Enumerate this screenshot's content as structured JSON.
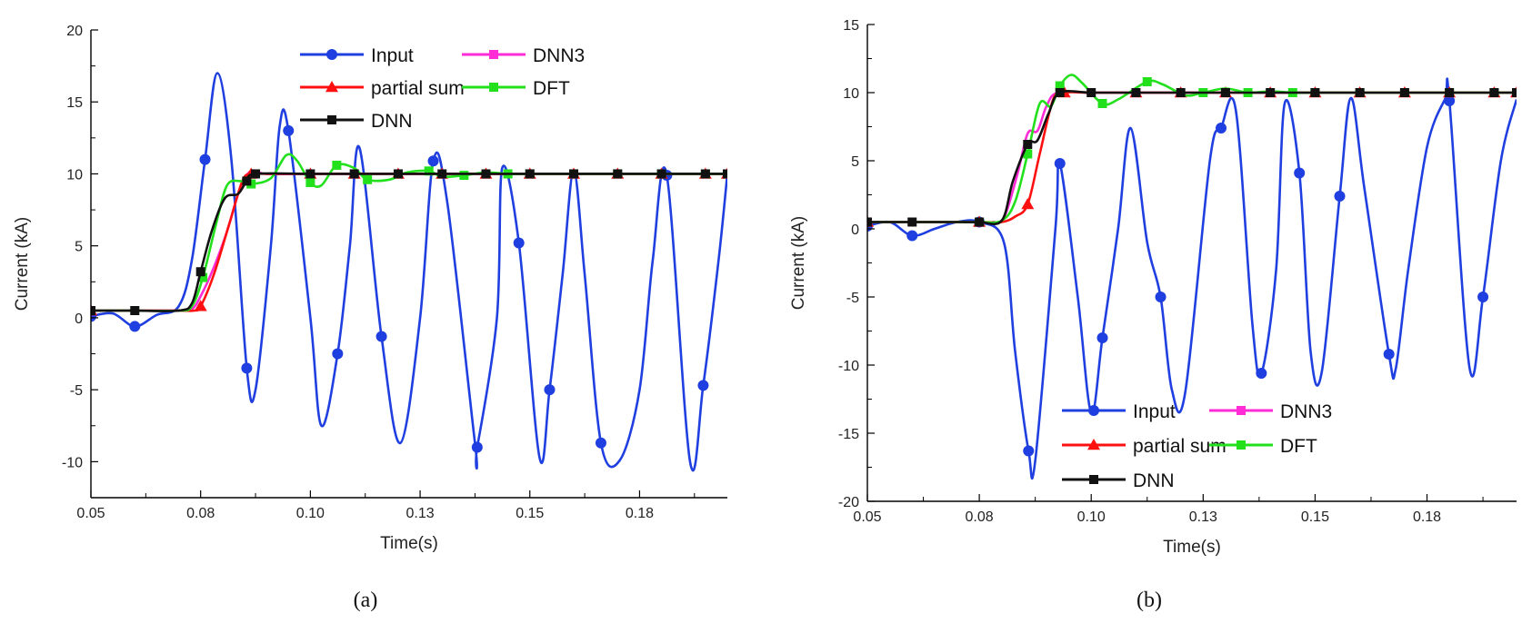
{
  "chart_data": [
    {
      "id": "a",
      "type": "line",
      "caption": "(a)",
      "xlabel": "Time(s)",
      "ylabel": "Current (kA)",
      "xlim": [
        0.05,
        0.195
      ],
      "ylim": [
        -12.5,
        20
      ],
      "xticks": [
        0.05,
        0.075,
        0.1,
        0.125,
        0.15,
        0.175
      ],
      "xtick_labels": [
        "0.05",
        "0.08",
        "0.10",
        "0.13",
        "0.15",
        "0.18"
      ],
      "yticks": [
        -10,
        -5,
        0,
        5,
        10,
        15,
        20
      ],
      "ytick_labels": [
        "-10",
        "-5",
        "0",
        "5",
        "10",
        "15",
        "20"
      ],
      "legend": [
        {
          "series": "Input",
          "label": "Input"
        },
        {
          "series": "DNN3",
          "label": "DNN3"
        },
        {
          "series": "partial sum",
          "label": "partial sum"
        },
        {
          "series": "DFT",
          "label": "DFT"
        },
        {
          "series": "DNN",
          "label": "DNN"
        }
      ],
      "legend_position": "top-right",
      "series": [
        {
          "name": "Input",
          "color": "#1f3fe0",
          "marker": "circle",
          "x": [
            0.05,
            0.055,
            0.06,
            0.065,
            0.07,
            0.073,
            0.076,
            0.0788,
            0.082,
            0.0855,
            0.0875,
            0.091,
            0.093,
            0.095,
            0.1,
            0.1025,
            0.1062,
            0.109,
            0.1112,
            0.1162,
            0.1205,
            0.125,
            0.128,
            0.1312,
            0.1375,
            0.138,
            0.1425,
            0.1437,
            0.1475,
            0.1522,
            0.1545,
            0.1575,
            0.16,
            0.1625,
            0.1662,
            0.1705,
            0.175,
            0.178,
            0.1812,
            0.1865,
            0.1895,
            0.193,
            0.195
          ],
          "y": [
            0.1,
            0.3,
            -0.6,
            0.2,
            0.8,
            4.0,
            11.0,
            17.0,
            11.0,
            -3.5,
            -5.0,
            5.0,
            13.3,
            13.0,
            0.0,
            -7.5,
            -2.5,
            5.0,
            11.8,
            -1.3,
            -8.7,
            0.0,
            10.9,
            8.0,
            -8.7,
            -9.0,
            0.0,
            10.4,
            5.2,
            -9.7,
            -5.0,
            3.1,
            10.2,
            3.0,
            -8.7,
            -9.9,
            -5.0,
            4.0,
            9.9,
            -10.0,
            -4.7,
            4.0,
            10.0
          ],
          "marker_indices": [
            0,
            2,
            6,
            9,
            13,
            16,
            19,
            22,
            25,
            28,
            30,
            34,
            38,
            40
          ]
        },
        {
          "name": "DNN3",
          "color": "#ff2bd6",
          "marker": "square",
          "x": [
            0.05,
            0.06,
            0.07,
            0.073,
            0.075,
            0.078,
            0.081,
            0.084,
            0.0865,
            0.09,
            0.1,
            0.11,
            0.12,
            0.13,
            0.14,
            0.15,
            0.16,
            0.17,
            0.18,
            0.19,
            0.195
          ],
          "y": [
            0.5,
            0.5,
            0.5,
            0.6,
            1.5,
            3.5,
            6.0,
            9.0,
            10.2,
            10.0,
            10.0,
            10.0,
            10.0,
            10.0,
            10.0,
            10.0,
            10.0,
            10.0,
            10.0,
            10.0,
            10.0
          ],
          "marker_indices": []
        },
        {
          "name": "partial sum",
          "color": "#ff1010",
          "marker": "triangle",
          "x": [
            0.05,
            0.06,
            0.07,
            0.0735,
            0.075,
            0.078,
            0.0815,
            0.0845,
            0.0865,
            0.09,
            0.1,
            0.11,
            0.12,
            0.13,
            0.14,
            0.15,
            0.16,
            0.17,
            0.18,
            0.19,
            0.195
          ],
          "y": [
            0.5,
            0.5,
            0.5,
            0.5,
            0.8,
            3.0,
            6.5,
            9.5,
            10.0,
            10.0,
            10.0,
            10.0,
            10.0,
            10.0,
            10.0,
            10.0,
            10.0,
            10.0,
            10.0,
            10.0,
            10.0
          ],
          "marker_indices": [
            0,
            4,
            8,
            10,
            11,
            12,
            13,
            14,
            15,
            16,
            17,
            18,
            19,
            20
          ]
        },
        {
          "name": "DFT",
          "color": "#22e01c",
          "marker": "square",
          "x": [
            0.05,
            0.06,
            0.07,
            0.073,
            0.0755,
            0.0785,
            0.081,
            0.084,
            0.0865,
            0.091,
            0.0945,
            0.097,
            0.1,
            0.1025,
            0.106,
            0.11,
            0.113,
            0.118,
            0.122,
            0.127,
            0.13,
            0.135,
            0.14,
            0.145,
            0.15,
            0.16,
            0.17,
            0.18,
            0.19,
            0.195
          ],
          "y": [
            0.5,
            0.5,
            0.5,
            0.8,
            2.8,
            6.5,
            9.2,
            9.5,
            9.3,
            9.7,
            11.3,
            10.9,
            9.4,
            9.2,
            10.6,
            10.4,
            9.6,
            9.6,
            10.1,
            10.2,
            9.8,
            9.9,
            10.1,
            10.0,
            10.0,
            10.0,
            10.0,
            10.0,
            10.0,
            10.0
          ],
          "marker_indices": [
            0,
            4,
            8,
            12,
            14,
            16,
            19,
            21,
            23,
            24,
            25,
            26,
            27,
            28
          ]
        },
        {
          "name": "DNN",
          "color": "#111111",
          "marker": "square",
          "x": [
            0.05,
            0.06,
            0.07,
            0.073,
            0.075,
            0.0775,
            0.0805,
            0.0835,
            0.0855,
            0.0875,
            0.1,
            0.11,
            0.12,
            0.13,
            0.14,
            0.15,
            0.16,
            0.17,
            0.18,
            0.19,
            0.195
          ],
          "y": [
            0.5,
            0.5,
            0.5,
            1.0,
            3.2,
            6.0,
            8.3,
            8.6,
            9.5,
            10.0,
            10.0,
            10.0,
            10.0,
            10.0,
            10.0,
            10.0,
            10.0,
            10.0,
            10.0,
            10.0,
            10.0
          ],
          "marker_indices": [
            0,
            1,
            4,
            8,
            9,
            10,
            11,
            12,
            13,
            14,
            15,
            16,
            17,
            18,
            19,
            20
          ]
        }
      ]
    },
    {
      "id": "b",
      "type": "line",
      "caption": "(b)",
      "xlabel": "Time(s)",
      "ylabel": "Current (kA)",
      "xlim": [
        0.05,
        0.195
      ],
      "ylim": [
        -20,
        15
      ],
      "xticks": [
        0.05,
        0.075,
        0.1,
        0.125,
        0.15,
        0.175
      ],
      "xtick_labels": [
        "0.05",
        "0.08",
        "0.10",
        "0.13",
        "0.15",
        "0.18"
      ],
      "yticks": [
        -20,
        -15,
        -10,
        -5,
        0,
        5,
        10,
        15
      ],
      "ytick_labels": [
        "-20",
        "-15",
        "-10",
        "-5",
        "0",
        "5",
        "10",
        "15"
      ],
      "legend": [
        {
          "series": "Input",
          "label": "Input"
        },
        {
          "series": "DNN3",
          "label": "DNN3"
        },
        {
          "series": "partial sum",
          "label": "partial sum"
        },
        {
          "series": "DFT",
          "label": "DFT"
        },
        {
          "series": "DNN",
          "label": "DNN"
        }
      ],
      "legend_position": "bottom-right",
      "series": [
        {
          "name": "Input",
          "color": "#1f3fe0",
          "marker": "circle",
          "x": [
            0.05,
            0.055,
            0.06,
            0.065,
            0.07,
            0.075,
            0.0805,
            0.083,
            0.086,
            0.0875,
            0.092,
            0.093,
            0.097,
            0.1,
            0.1025,
            0.106,
            0.1088,
            0.1125,
            0.1155,
            0.118,
            0.121,
            0.1265,
            0.129,
            0.1323,
            0.136,
            0.138,
            0.1413,
            0.1432,
            0.1465,
            0.149,
            0.1515,
            0.1555,
            0.158,
            0.161,
            0.1665,
            0.168,
            0.1708,
            0.175,
            0.179,
            0.18,
            0.1845,
            0.1875,
            0.1915,
            0.195
          ],
          "y": [
            0.2,
            0.5,
            -0.5,
            0.0,
            0.5,
            0.5,
            -1.0,
            -9.0,
            -16.3,
            -17.0,
            0.0,
            4.8,
            -5.0,
            -13.5,
            -8.0,
            0.0,
            7.4,
            -1.0,
            -5.0,
            -11.8,
            -12.0,
            5.0,
            7.4,
            8.7,
            -7.0,
            -10.6,
            -3.0,
            9.2,
            4.1,
            -9.0,
            -10.5,
            2.4,
            9.6,
            3.0,
            -9.2,
            -10.3,
            -3.0,
            6.0,
            9.5,
            9.4,
            -10.2,
            -5.0,
            5.0,
            9.5
          ],
          "marker_indices": [
            0,
            2,
            5,
            8,
            11,
            14,
            18,
            22,
            25,
            28,
            31,
            34,
            39,
            41
          ]
        },
        {
          "name": "DNN3",
          "color": "#ff2bd6",
          "marker": "square",
          "x": [
            0.05,
            0.06,
            0.07,
            0.075,
            0.078,
            0.0805,
            0.0835,
            0.0858,
            0.088,
            0.09,
            0.0925,
            0.1,
            0.11,
            0.12,
            0.13,
            0.14,
            0.15,
            0.16,
            0.17,
            0.18,
            0.19,
            0.195
          ],
          "y": [
            0.5,
            0.5,
            0.5,
            0.5,
            0.5,
            0.8,
            4.0,
            7.0,
            7.2,
            9.0,
            10.0,
            10.0,
            10.0,
            10.0,
            10.0,
            10.0,
            10.0,
            10.0,
            10.0,
            10.0,
            10.0,
            10.0
          ],
          "marker_indices": []
        },
        {
          "name": "partial sum",
          "color": "#ff1010",
          "marker": "triangle",
          "x": [
            0.05,
            0.06,
            0.07,
            0.075,
            0.08,
            0.083,
            0.0858,
            0.0885,
            0.0915,
            0.094,
            0.1,
            0.11,
            0.12,
            0.13,
            0.14,
            0.15,
            0.16,
            0.17,
            0.18,
            0.19,
            0.195
          ],
          "y": [
            0.5,
            0.5,
            0.5,
            0.5,
            0.5,
            0.9,
            1.8,
            5.5,
            9.5,
            10.0,
            10.0,
            10.0,
            10.0,
            10.0,
            10.0,
            10.0,
            10.0,
            10.0,
            10.0,
            10.0,
            10.0
          ],
          "marker_indices": [
            0,
            3,
            6,
            9,
            11,
            12,
            13,
            14,
            15,
            16,
            17,
            18,
            19,
            20
          ]
        },
        {
          "name": "DFT",
          "color": "#22e01c",
          "marker": "square",
          "x": [
            0.05,
            0.06,
            0.07,
            0.075,
            0.08,
            0.083,
            0.0858,
            0.0885,
            0.091,
            0.093,
            0.0955,
            0.098,
            0.1025,
            0.106,
            0.1125,
            0.116,
            0.121,
            0.125,
            0.13,
            0.135,
            0.14,
            0.145,
            0.15,
            0.16,
            0.17,
            0.18,
            0.19,
            0.195
          ],
          "y": [
            0.5,
            0.5,
            0.5,
            0.5,
            0.6,
            2.0,
            5.5,
            9.2,
            9.0,
            10.5,
            11.3,
            10.7,
            9.2,
            9.5,
            10.8,
            10.6,
            9.8,
            10.0,
            10.3,
            10.0,
            10.1,
            10.0,
            10.0,
            10.0,
            10.0,
            10.0,
            10.0,
            10.0
          ],
          "marker_indices": [
            0,
            3,
            6,
            9,
            12,
            14,
            17,
            19,
            21,
            22,
            23,
            24,
            25,
            26
          ]
        },
        {
          "name": "DNN",
          "color": "#111111",
          "marker": "square",
          "x": [
            0.05,
            0.06,
            0.07,
            0.075,
            0.08,
            0.0825,
            0.0858,
            0.088,
            0.0905,
            0.093,
            0.1,
            0.11,
            0.12,
            0.13,
            0.14,
            0.15,
            0.16,
            0.17,
            0.18,
            0.19,
            0.195
          ],
          "y": [
            0.5,
            0.5,
            0.5,
            0.5,
            0.6,
            3.5,
            6.2,
            6.5,
            8.5,
            10.0,
            10.0,
            10.0,
            10.0,
            10.0,
            10.0,
            10.0,
            10.0,
            10.0,
            10.0,
            10.0,
            10.0
          ],
          "marker_indices": [
            0,
            1,
            3,
            6,
            9,
            10,
            11,
            12,
            13,
            14,
            15,
            16,
            17,
            18,
            19,
            20
          ]
        }
      ]
    }
  ]
}
